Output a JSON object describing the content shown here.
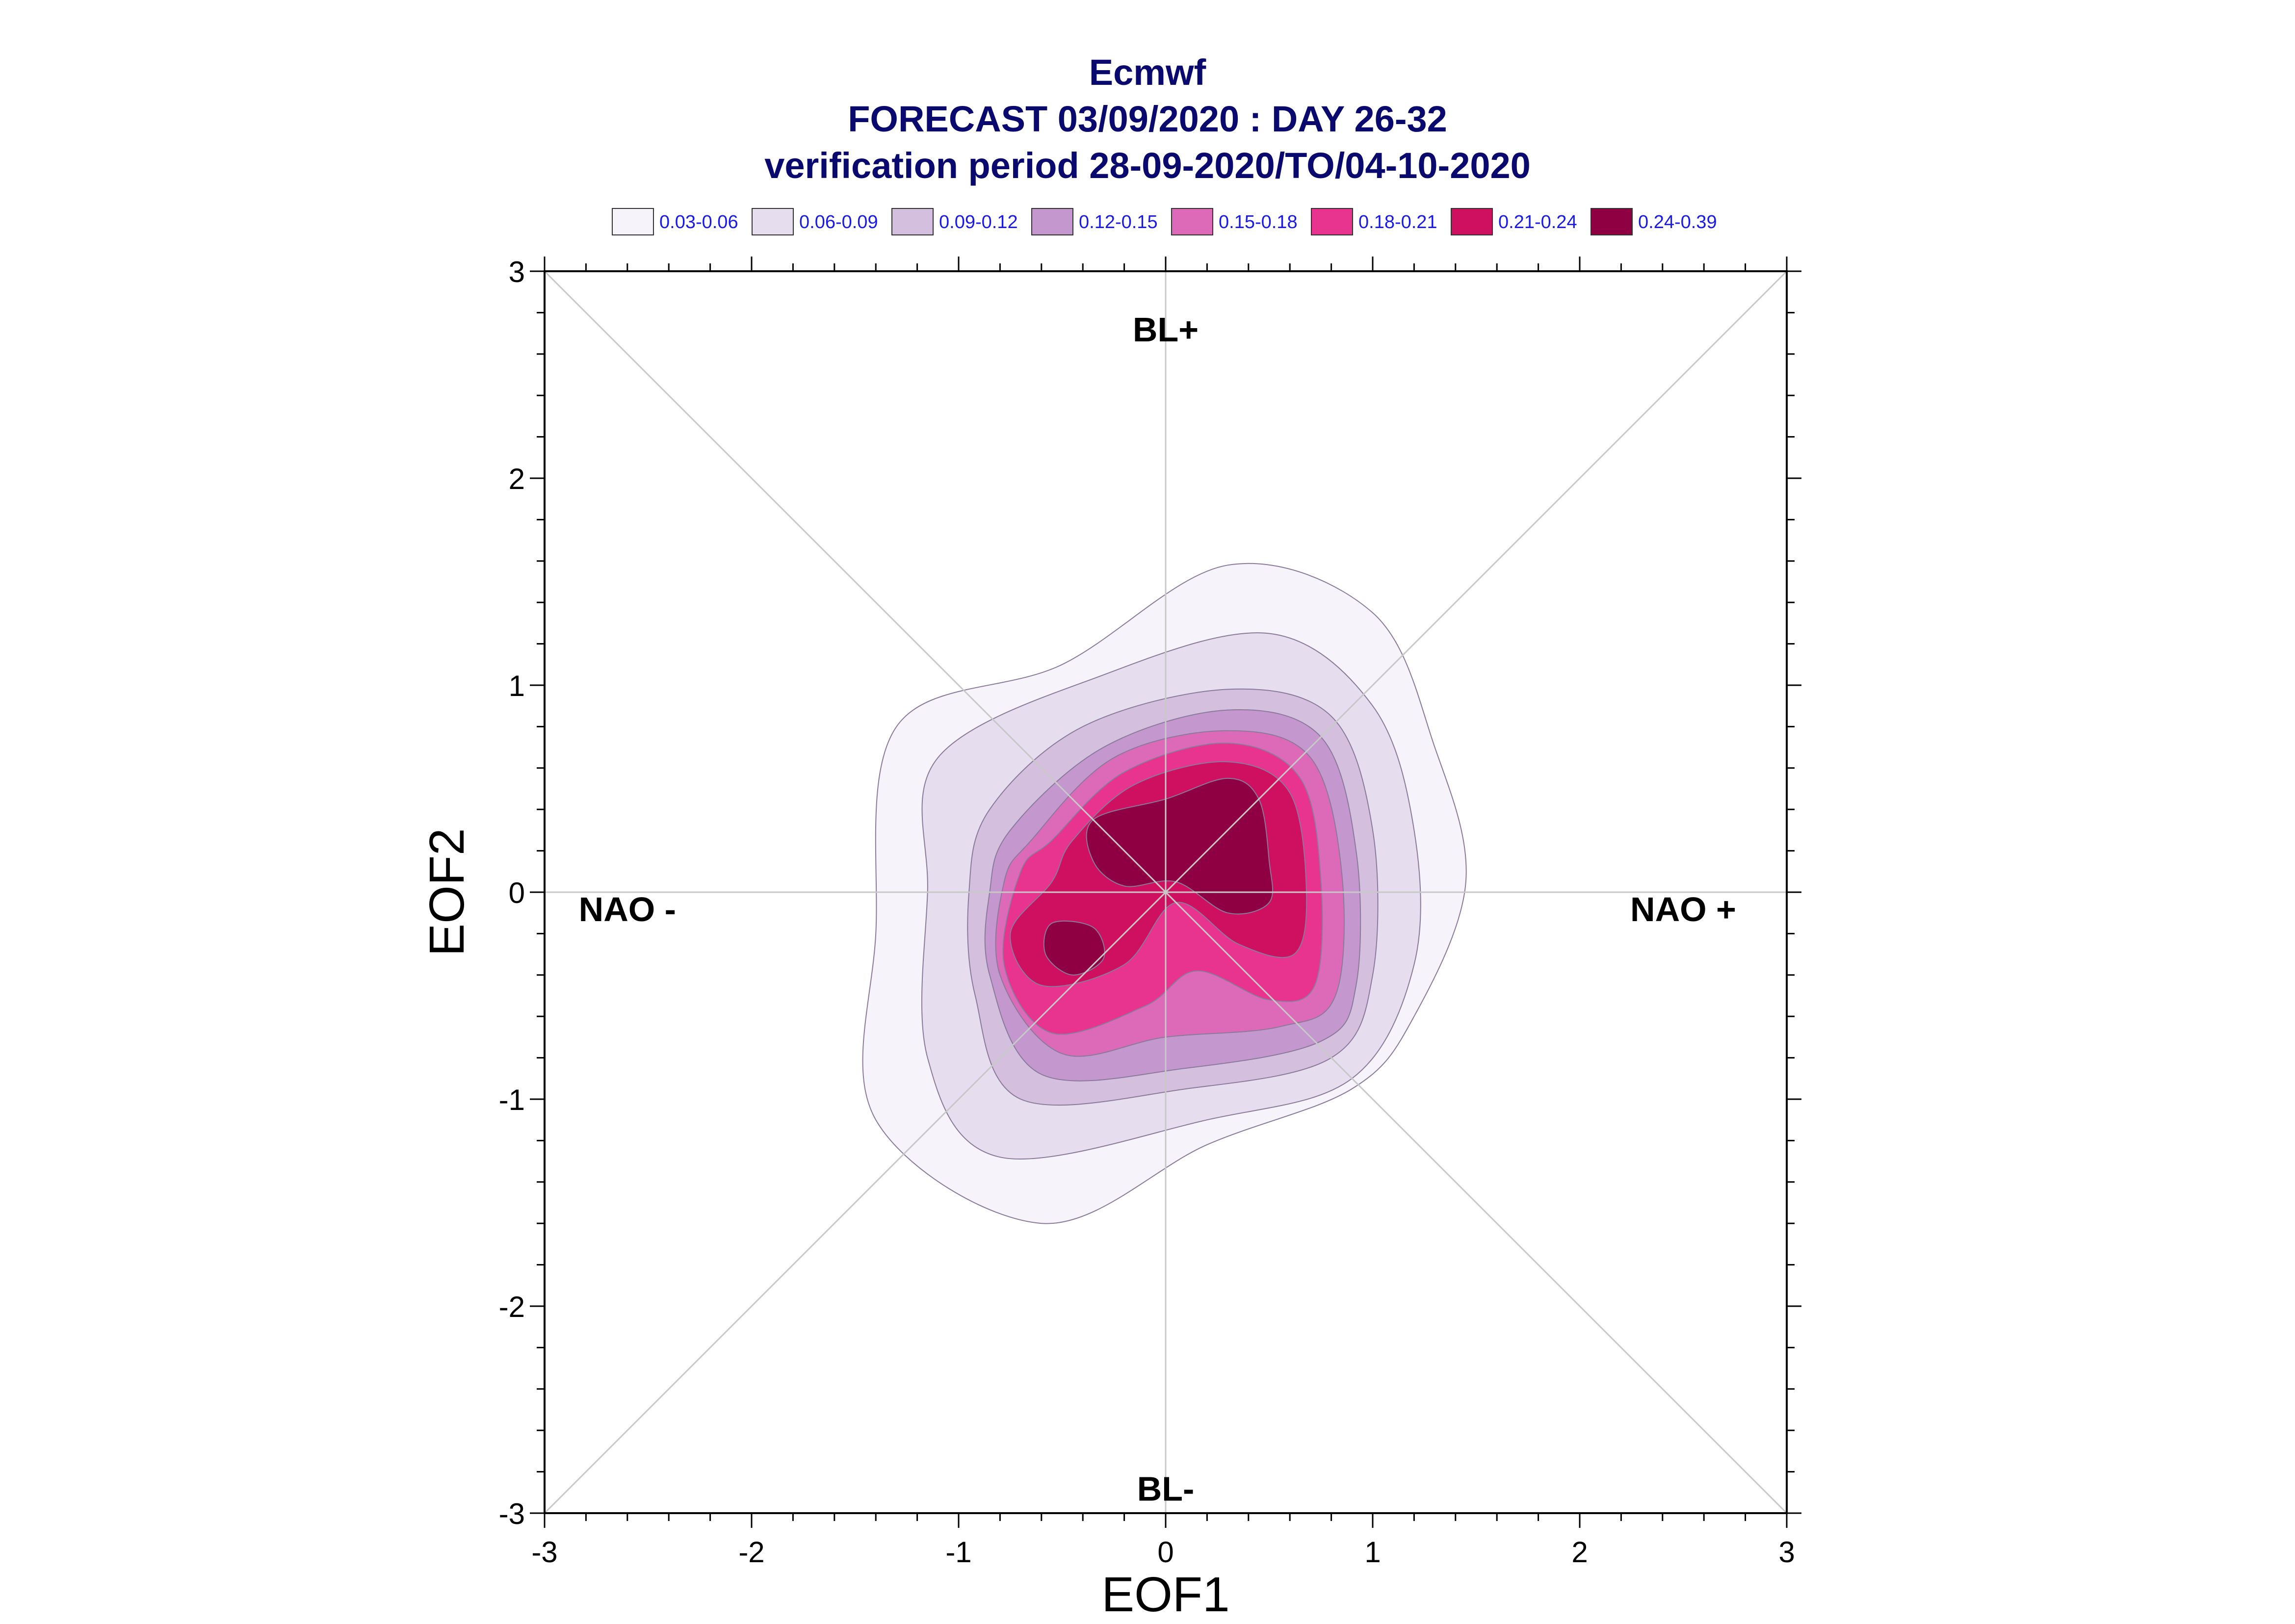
{
  "chart_data": {
    "type": "contour",
    "title": "Ecmwf",
    "subtitle": "FORECAST 03/09/2020 : DAY 26-32",
    "subtitle2": "verification period 28-09-2020/TO/04-10-2020",
    "xlabel": "EOF1",
    "ylabel": "EOF2",
    "xlim": [
      -3,
      3
    ],
    "ylim": [
      -3,
      3
    ],
    "x_ticks": [
      "-3",
      "-2",
      "-1",
      "0",
      "1",
      "2",
      "3"
    ],
    "y_ticks": [
      "-3",
      "-2",
      "-1",
      "0",
      "1",
      "2",
      "3"
    ],
    "grid": false,
    "reference_lines": "axes and diagonals",
    "legend_position": "top",
    "regime_labels": [
      {
        "text": "BL+",
        "x": 0,
        "y": 2.72
      },
      {
        "text": "BL-",
        "x": 0,
        "y": -2.88
      },
      {
        "text": "NAO -",
        "x": -2.6,
        "y": -0.08
      },
      {
        "text": "NAO +",
        "x": 2.5,
        "y": -0.08
      }
    ],
    "levels": [
      {
        "label": "0.03-0.06",
        "color": "#f6f3fa"
      },
      {
        "label": "0.06-0.09",
        "color": "#e6deef"
      },
      {
        "label": "0.09-0.12",
        "color": "#d4bfdf"
      },
      {
        "label": "0.12-0.15",
        "color": "#c497cf"
      },
      {
        "label": "0.15-0.18",
        "color": "#dc6ab8"
      },
      {
        "label": "0.18-0.21",
        "color": "#e8338f"
      },
      {
        "label": "0.21-0.24",
        "color": "#cf1060"
      },
      {
        "label": "0.24-0.39",
        "color": "#8e0042"
      }
    ],
    "contours": [
      {
        "level": 0,
        "points": [
          [
            -1.3,
            0.8
          ],
          [
            -0.5,
            1.1
          ],
          [
            0.3,
            1.58
          ],
          [
            1.0,
            1.35
          ],
          [
            1.3,
            0.7
          ],
          [
            1.45,
            0.05
          ],
          [
            1.2,
            -0.6
          ],
          [
            0.9,
            -0.95
          ],
          [
            0.2,
            -1.22
          ],
          [
            -0.6,
            -1.6
          ],
          [
            -1.4,
            -1.1
          ],
          [
            -1.4,
            -0.2
          ]
        ]
      },
      {
        "level": 1,
        "points": [
          [
            -1.1,
            0.65
          ],
          [
            -0.3,
            1.05
          ],
          [
            0.5,
            1.25
          ],
          [
            1.0,
            0.9
          ],
          [
            1.2,
            0.3
          ],
          [
            1.2,
            -0.35
          ],
          [
            0.9,
            -0.9
          ],
          [
            0.2,
            -1.1
          ],
          [
            -0.8,
            -1.28
          ],
          [
            -1.15,
            -0.8
          ],
          [
            -1.15,
            0.0
          ]
        ]
      },
      {
        "level": 2,
        "points": [
          [
            -0.85,
            0.4
          ],
          [
            -0.4,
            0.8
          ],
          [
            0.3,
            0.98
          ],
          [
            0.8,
            0.85
          ],
          [
            1.0,
            0.3
          ],
          [
            1.0,
            -0.4
          ],
          [
            0.8,
            -0.8
          ],
          [
            0.1,
            -0.95
          ],
          [
            -0.7,
            -1.0
          ],
          [
            -0.92,
            -0.5
          ],
          [
            -0.95,
            0.0
          ]
        ]
      },
      {
        "level": 3,
        "points": [
          [
            -0.75,
            0.3
          ],
          [
            -0.3,
            0.7
          ],
          [
            0.3,
            0.88
          ],
          [
            0.75,
            0.75
          ],
          [
            0.92,
            0.2
          ],
          [
            0.92,
            -0.45
          ],
          [
            0.75,
            -0.72
          ],
          [
            0.1,
            -0.85
          ],
          [
            -0.6,
            -0.88
          ],
          [
            -0.85,
            -0.4
          ],
          [
            -0.85,
            0.0
          ]
        ]
      },
      {
        "level": 4,
        "points": [
          [
            -0.65,
            0.25
          ],
          [
            -0.25,
            0.65
          ],
          [
            0.3,
            0.78
          ],
          [
            0.7,
            0.65
          ],
          [
            0.85,
            0.1
          ],
          [
            0.82,
            -0.5
          ],
          [
            0.55,
            -0.65
          ],
          [
            0.0,
            -0.7
          ],
          [
            -0.5,
            -0.78
          ],
          [
            -0.8,
            -0.4
          ],
          [
            -0.78,
            0.05
          ]
        ]
      },
      {
        "level": 5,
        "points": [
          [
            -0.55,
            0.25
          ],
          [
            -0.2,
            0.58
          ],
          [
            0.3,
            0.72
          ],
          [
            0.65,
            0.55
          ],
          [
            0.75,
            0.05
          ],
          [
            0.72,
            -0.45
          ],
          [
            0.5,
            -0.52
          ],
          [
            0.15,
            -0.38
          ],
          [
            -0.1,
            -0.55
          ],
          [
            -0.55,
            -0.68
          ],
          [
            -0.78,
            -0.35
          ],
          [
            -0.7,
            0.1
          ]
        ]
      },
      {
        "level": 6,
        "points": [
          [
            -0.45,
            0.25
          ],
          [
            -0.15,
            0.52
          ],
          [
            0.3,
            0.63
          ],
          [
            0.6,
            0.48
          ],
          [
            0.68,
            0.0
          ],
          [
            0.62,
            -0.3
          ],
          [
            0.35,
            -0.25
          ],
          [
            0.05,
            -0.05
          ],
          [
            -0.2,
            -0.35
          ],
          [
            -0.6,
            -0.45
          ],
          [
            -0.75,
            -0.2
          ],
          [
            -0.55,
            0.05
          ]
        ]
      },
      {
        "level": 7,
        "points": [
          [
            -0.35,
            0.35
          ],
          [
            0.0,
            0.45
          ],
          [
            0.3,
            0.55
          ],
          [
            0.45,
            0.45
          ],
          [
            0.5,
            0.15
          ],
          [
            0.5,
            -0.05
          ],
          [
            0.3,
            -0.1
          ],
          [
            0.05,
            0.05
          ],
          [
            -0.2,
            0.03
          ],
          [
            -0.35,
            0.15
          ]
        ]
      },
      {
        "level": 7,
        "points": [
          [
            -0.55,
            -0.15
          ],
          [
            -0.35,
            -0.17
          ],
          [
            -0.3,
            -0.32
          ],
          [
            -0.45,
            -0.4
          ],
          [
            -0.58,
            -0.3
          ]
        ]
      }
    ]
  }
}
